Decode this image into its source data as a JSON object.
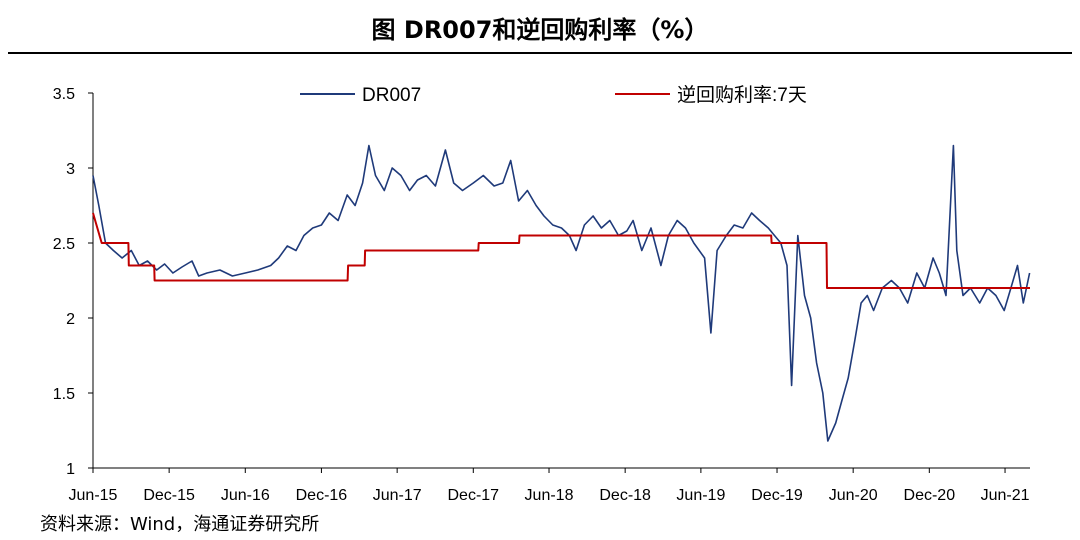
{
  "title": "图 DR007和逆回购利率（%）",
  "source": "资料来源：Wind，海通证券研究所",
  "chart_data": {
    "type": "line",
    "ylim": [
      1,
      3.5
    ],
    "yticks": [
      1,
      1.5,
      2,
      2.5,
      3,
      3.5
    ],
    "ytick_labels": [
      "1",
      "1.5",
      "2",
      "2.5",
      "3",
      "3.5"
    ],
    "xlim": [
      "2015-06-01",
      "2021-07-31"
    ],
    "xticks": [
      "2015-06-01",
      "2015-12-01",
      "2016-06-01",
      "2016-12-01",
      "2017-06-01",
      "2017-12-01",
      "2018-06-01",
      "2018-12-01",
      "2019-06-01",
      "2019-12-01",
      "2020-06-01",
      "2020-12-01",
      "2021-06-01"
    ],
    "xtick_labels": [
      "Jun-15",
      "Dec-15",
      "Jun-16",
      "Dec-16",
      "Jun-17",
      "Dec-17",
      "Jun-18",
      "Dec-18",
      "Jun-19",
      "Dec-19",
      "Jun-20",
      "Dec-20",
      "Jun-21"
    ],
    "legend_position": "top",
    "series": [
      {
        "name": "DR007",
        "color": "#1f3a7a",
        "points": [
          [
            "2015-06-01",
            2.95
          ],
          [
            "2015-06-15",
            2.75
          ],
          [
            "2015-07-01",
            2.5
          ],
          [
            "2015-07-20",
            2.45
          ],
          [
            "2015-08-10",
            2.4
          ],
          [
            "2015-09-01",
            2.45
          ],
          [
            "2015-09-20",
            2.35
          ],
          [
            "2015-10-10",
            2.38
          ],
          [
            "2015-11-01",
            2.32
          ],
          [
            "2015-11-20",
            2.36
          ],
          [
            "2015-12-10",
            2.3
          ],
          [
            "2016-01-01",
            2.34
          ],
          [
            "2016-01-25",
            2.38
          ],
          [
            "2016-02-10",
            2.28
          ],
          [
            "2016-03-01",
            2.3
          ],
          [
            "2016-04-01",
            2.32
          ],
          [
            "2016-05-01",
            2.28
          ],
          [
            "2016-06-01",
            2.3
          ],
          [
            "2016-07-01",
            2.32
          ],
          [
            "2016-08-01",
            2.35
          ],
          [
            "2016-08-20",
            2.4
          ],
          [
            "2016-09-10",
            2.48
          ],
          [
            "2016-10-01",
            2.45
          ],
          [
            "2016-10-20",
            2.55
          ],
          [
            "2016-11-10",
            2.6
          ],
          [
            "2016-12-01",
            2.62
          ],
          [
            "2016-12-20",
            2.7
          ],
          [
            "2017-01-10",
            2.65
          ],
          [
            "2017-02-01",
            2.82
          ],
          [
            "2017-02-20",
            2.75
          ],
          [
            "2017-03-10",
            2.9
          ],
          [
            "2017-03-25",
            3.15
          ],
          [
            "2017-04-10",
            2.95
          ],
          [
            "2017-05-01",
            2.85
          ],
          [
            "2017-05-20",
            3.0
          ],
          [
            "2017-06-10",
            2.95
          ],
          [
            "2017-07-01",
            2.85
          ],
          [
            "2017-07-20",
            2.92
          ],
          [
            "2017-08-10",
            2.95
          ],
          [
            "2017-09-01",
            2.88
          ],
          [
            "2017-09-25",
            3.12
          ],
          [
            "2017-10-15",
            2.9
          ],
          [
            "2017-11-05",
            2.85
          ],
          [
            "2017-12-01",
            2.9
          ],
          [
            "2017-12-25",
            2.95
          ],
          [
            "2018-01-20",
            2.88
          ],
          [
            "2018-02-10",
            2.9
          ],
          [
            "2018-03-01",
            3.05
          ],
          [
            "2018-03-20",
            2.78
          ],
          [
            "2018-04-10",
            2.85
          ],
          [
            "2018-05-01",
            2.75
          ],
          [
            "2018-05-20",
            2.68
          ],
          [
            "2018-06-10",
            2.62
          ],
          [
            "2018-07-01",
            2.6
          ],
          [
            "2018-07-20",
            2.55
          ],
          [
            "2018-08-05",
            2.45
          ],
          [
            "2018-08-25",
            2.62
          ],
          [
            "2018-09-15",
            2.68
          ],
          [
            "2018-10-05",
            2.6
          ],
          [
            "2018-10-25",
            2.65
          ],
          [
            "2018-11-15",
            2.55
          ],
          [
            "2018-12-05",
            2.58
          ],
          [
            "2018-12-20",
            2.65
          ],
          [
            "2019-01-10",
            2.45
          ],
          [
            "2019-02-01",
            2.6
          ],
          [
            "2019-02-25",
            2.35
          ],
          [
            "2019-03-15",
            2.55
          ],
          [
            "2019-04-05",
            2.65
          ],
          [
            "2019-04-25",
            2.6
          ],
          [
            "2019-05-15",
            2.5
          ],
          [
            "2019-06-10",
            2.4
          ],
          [
            "2019-06-25",
            1.9
          ],
          [
            "2019-07-10",
            2.45
          ],
          [
            "2019-08-01",
            2.55
          ],
          [
            "2019-08-20",
            2.62
          ],
          [
            "2019-09-10",
            2.6
          ],
          [
            "2019-10-01",
            2.7
          ],
          [
            "2019-10-20",
            2.65
          ],
          [
            "2019-11-10",
            2.6
          ],
          [
            "2019-11-25",
            2.55
          ],
          [
            "2019-12-10",
            2.5
          ],
          [
            "2019-12-25",
            2.35
          ],
          [
            "2020-01-05",
            1.55
          ],
          [
            "2020-01-20",
            2.55
          ],
          [
            "2020-02-05",
            2.15
          ],
          [
            "2020-02-20",
            2.0
          ],
          [
            "2020-03-05",
            1.7
          ],
          [
            "2020-03-20",
            1.5
          ],
          [
            "2020-04-01",
            1.18
          ],
          [
            "2020-04-20",
            1.3
          ],
          [
            "2020-05-05",
            1.45
          ],
          [
            "2020-05-20",
            1.6
          ],
          [
            "2020-06-05",
            1.85
          ],
          [
            "2020-06-20",
            2.1
          ],
          [
            "2020-07-05",
            2.15
          ],
          [
            "2020-07-20",
            2.05
          ],
          [
            "2020-08-10",
            2.2
          ],
          [
            "2020-09-01",
            2.25
          ],
          [
            "2020-09-20",
            2.2
          ],
          [
            "2020-10-10",
            2.1
          ],
          [
            "2020-11-01",
            2.3
          ],
          [
            "2020-11-20",
            2.2
          ],
          [
            "2020-12-10",
            2.4
          ],
          [
            "2020-12-25",
            2.3
          ],
          [
            "2021-01-10",
            2.15
          ],
          [
            "2021-01-28",
            3.15
          ],
          [
            "2021-02-05",
            2.45
          ],
          [
            "2021-02-20",
            2.15
          ],
          [
            "2021-03-10",
            2.2
          ],
          [
            "2021-04-01",
            2.1
          ],
          [
            "2021-04-20",
            2.2
          ],
          [
            "2021-05-10",
            2.15
          ],
          [
            "2021-05-30",
            2.05
          ],
          [
            "2021-06-15",
            2.2
          ],
          [
            "2021-07-01",
            2.35
          ],
          [
            "2021-07-15",
            2.1
          ],
          [
            "2021-07-30",
            2.3
          ]
        ]
      },
      {
        "name": "逆回购利率:7天",
        "color": "#c00000",
        "points": [
          [
            "2015-06-01",
            2.7
          ],
          [
            "2015-06-22",
            2.5
          ],
          [
            "2015-08-25",
            2.5
          ],
          [
            "2015-08-26",
            2.35
          ],
          [
            "2015-10-26",
            2.35
          ],
          [
            "2015-10-27",
            2.25
          ],
          [
            "2017-02-02",
            2.25
          ],
          [
            "2017-02-03",
            2.35
          ],
          [
            "2017-03-15",
            2.35
          ],
          [
            "2017-03-16",
            2.45
          ],
          [
            "2017-12-13",
            2.45
          ],
          [
            "2017-12-14",
            2.5
          ],
          [
            "2018-03-21",
            2.5
          ],
          [
            "2018-03-22",
            2.55
          ],
          [
            "2019-11-17",
            2.55
          ],
          [
            "2019-11-18",
            2.5
          ],
          [
            "2020-03-29",
            2.5
          ],
          [
            "2020-03-30",
            2.2
          ],
          [
            "2021-07-31",
            2.2
          ]
        ]
      }
    ]
  }
}
